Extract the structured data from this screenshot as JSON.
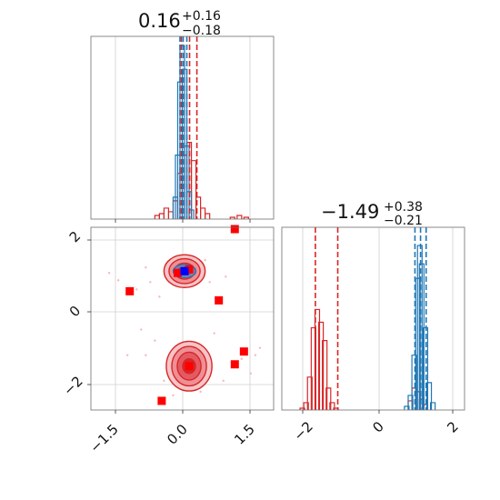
{
  "colors": {
    "red": "#d62728",
    "blue": "#1f77b4",
    "marker_red": "#ff0000",
    "marker_blue": "#0000ff"
  },
  "chart_data": [
    {
      "type": "histogram",
      "panel": "top-left",
      "title": {
        "value": "0.16",
        "upper": "+0.16",
        "lower": "−0.18"
      },
      "xlim": [
        -2.0,
        2.0
      ],
      "ylim": [
        0,
        1.0
      ],
      "grid": true,
      "red_quantiles": [
        -0.02,
        0.16,
        0.32
      ],
      "blue_quantiles": [
        -0.05,
        0.02,
        0.1
      ],
      "red_hist": [
        [
          -0.55,
          0.02
        ],
        [
          -0.45,
          0.03
        ],
        [
          -0.35,
          0.06
        ],
        [
          -0.25,
          0.04
        ],
        [
          -0.15,
          0.1
        ],
        [
          -0.05,
          0.25
        ],
        [
          0.05,
          0.35
        ],
        [
          0.15,
          0.42
        ],
        [
          0.25,
          0.32
        ],
        [
          0.35,
          0.12
        ],
        [
          0.45,
          0.06
        ],
        [
          0.55,
          0.03
        ],
        [
          1.1,
          0.01
        ],
        [
          1.25,
          0.02
        ],
        [
          1.4,
          0.01
        ]
      ],
      "blue_hist": [
        [
          -0.15,
          0.12
        ],
        [
          -0.1,
          0.35
        ],
        [
          -0.05,
          0.75
        ],
        [
          0.0,
          0.95
        ],
        [
          0.05,
          0.82
        ],
        [
          0.1,
          0.4
        ],
        [
          0.15,
          0.15
        ],
        [
          0.2,
          0.05
        ]
      ]
    },
    {
      "type": "scatter-contour",
      "panel": "bottom-left",
      "xlim": [
        -2.0,
        2.0
      ],
      "ylim": [
        -2.7,
        2.3
      ],
      "grid": true,
      "x_ticks": [
        "−1.5",
        "0.0",
        "1.5"
      ],
      "y_ticks": [
        "−2",
        "0",
        "2"
      ],
      "x_tick_values": [
        -1.5,
        0.0,
        1.5
      ],
      "y_tick_values": [
        -2,
        0,
        2
      ],
      "red_contours": [
        {
          "cx": 0.05,
          "cy": 1.1,
          "rx": [
            0.45,
            0.34,
            0.22
          ],
          "ry": [
            0.45,
            0.34,
            0.22
          ]
        },
        {
          "cx": 0.15,
          "cy": -1.5,
          "rx": [
            0.5,
            0.38,
            0.26,
            0.14
          ],
          "ry": [
            0.68,
            0.54,
            0.38,
            0.2
          ]
        }
      ],
      "blue_contours": [
        {
          "cx": 0.05,
          "cy": 1.1,
          "rx": [
            0.25,
            0.16
          ],
          "ry": [
            0.18,
            0.11
          ]
        }
      ],
      "red_squares": [
        [
          -1.15,
          0.55
        ],
        [
          -0.1,
          1.05
        ],
        [
          0.15,
          1.15
        ],
        [
          0.8,
          0.3
        ],
        [
          1.15,
          2.25
        ],
        [
          1.15,
          -1.45
        ],
        [
          1.35,
          -1.1
        ],
        [
          -0.45,
          -2.45
        ],
        [
          0.15,
          -1.5
        ]
      ],
      "blue_squares": [
        [
          0.05,
          1.1
        ]
      ],
      "faint_points": [
        [
          -1.6,
          1.05
        ],
        [
          -1.4,
          0.85
        ],
        [
          -1.0,
          0.6
        ],
        [
          -0.8,
          1.2
        ],
        [
          -0.7,
          0.8
        ],
        [
          -0.5,
          0.4
        ],
        [
          -0.3,
          0.9
        ],
        [
          -0.6,
          -0.8
        ],
        [
          -0.8,
          -1.2
        ],
        [
          -0.4,
          -1.9
        ],
        [
          0.5,
          1.4
        ],
        [
          0.6,
          0.8
        ],
        [
          0.7,
          -0.6
        ],
        [
          0.9,
          -1.9
        ],
        [
          1.3,
          -1.3
        ],
        [
          1.6,
          -1.2
        ],
        [
          1.7,
          -1.0
        ],
        [
          1.5,
          -1.7
        ],
        [
          -0.9,
          -0.5
        ],
        [
          0.4,
          -2.2
        ],
        [
          -0.2,
          -2.3
        ],
        [
          0.95,
          0.95
        ],
        [
          -1.2,
          -1.2
        ]
      ]
    },
    {
      "type": "histogram",
      "panel": "bottom-right",
      "title": {
        "value": "−1.49",
        "upper": "+0.38",
        "lower": "−0.21"
      },
      "xlim": [
        -2.6,
        2.3
      ],
      "ylim": [
        0,
        1.0
      ],
      "grid": true,
      "x_ticks": [
        "−2",
        "0",
        "2"
      ],
      "x_tick_values": [
        -2,
        0,
        2
      ],
      "red_quantiles": [
        -1.7,
        -1.1
      ],
      "blue_quantiles": [
        0.97,
        1.12,
        1.27
      ],
      "red_hist": [
        [
          -2.05,
          0.01
        ],
        [
          -1.95,
          0.04
        ],
        [
          -1.85,
          0.18
        ],
        [
          -1.75,
          0.45
        ],
        [
          -1.65,
          0.55
        ],
        [
          -1.55,
          0.48
        ],
        [
          -1.45,
          0.38
        ],
        [
          -1.35,
          0.12
        ],
        [
          -1.25,
          0.04
        ],
        [
          -1.15,
          0.01
        ],
        [
          0.85,
          0.05
        ],
        [
          0.95,
          0.12
        ],
        [
          1.05,
          0.1
        ],
        [
          1.15,
          0.06
        ],
        [
          1.25,
          0.03
        ]
      ],
      "blue_hist": [
        [
          0.75,
          0.02
        ],
        [
          0.85,
          0.08
        ],
        [
          0.95,
          0.3
        ],
        [
          1.05,
          0.72
        ],
        [
          1.1,
          0.9
        ],
        [
          1.15,
          0.8
        ],
        [
          1.25,
          0.45
        ],
        [
          1.35,
          0.15
        ],
        [
          1.45,
          0.04
        ]
      ]
    }
  ]
}
